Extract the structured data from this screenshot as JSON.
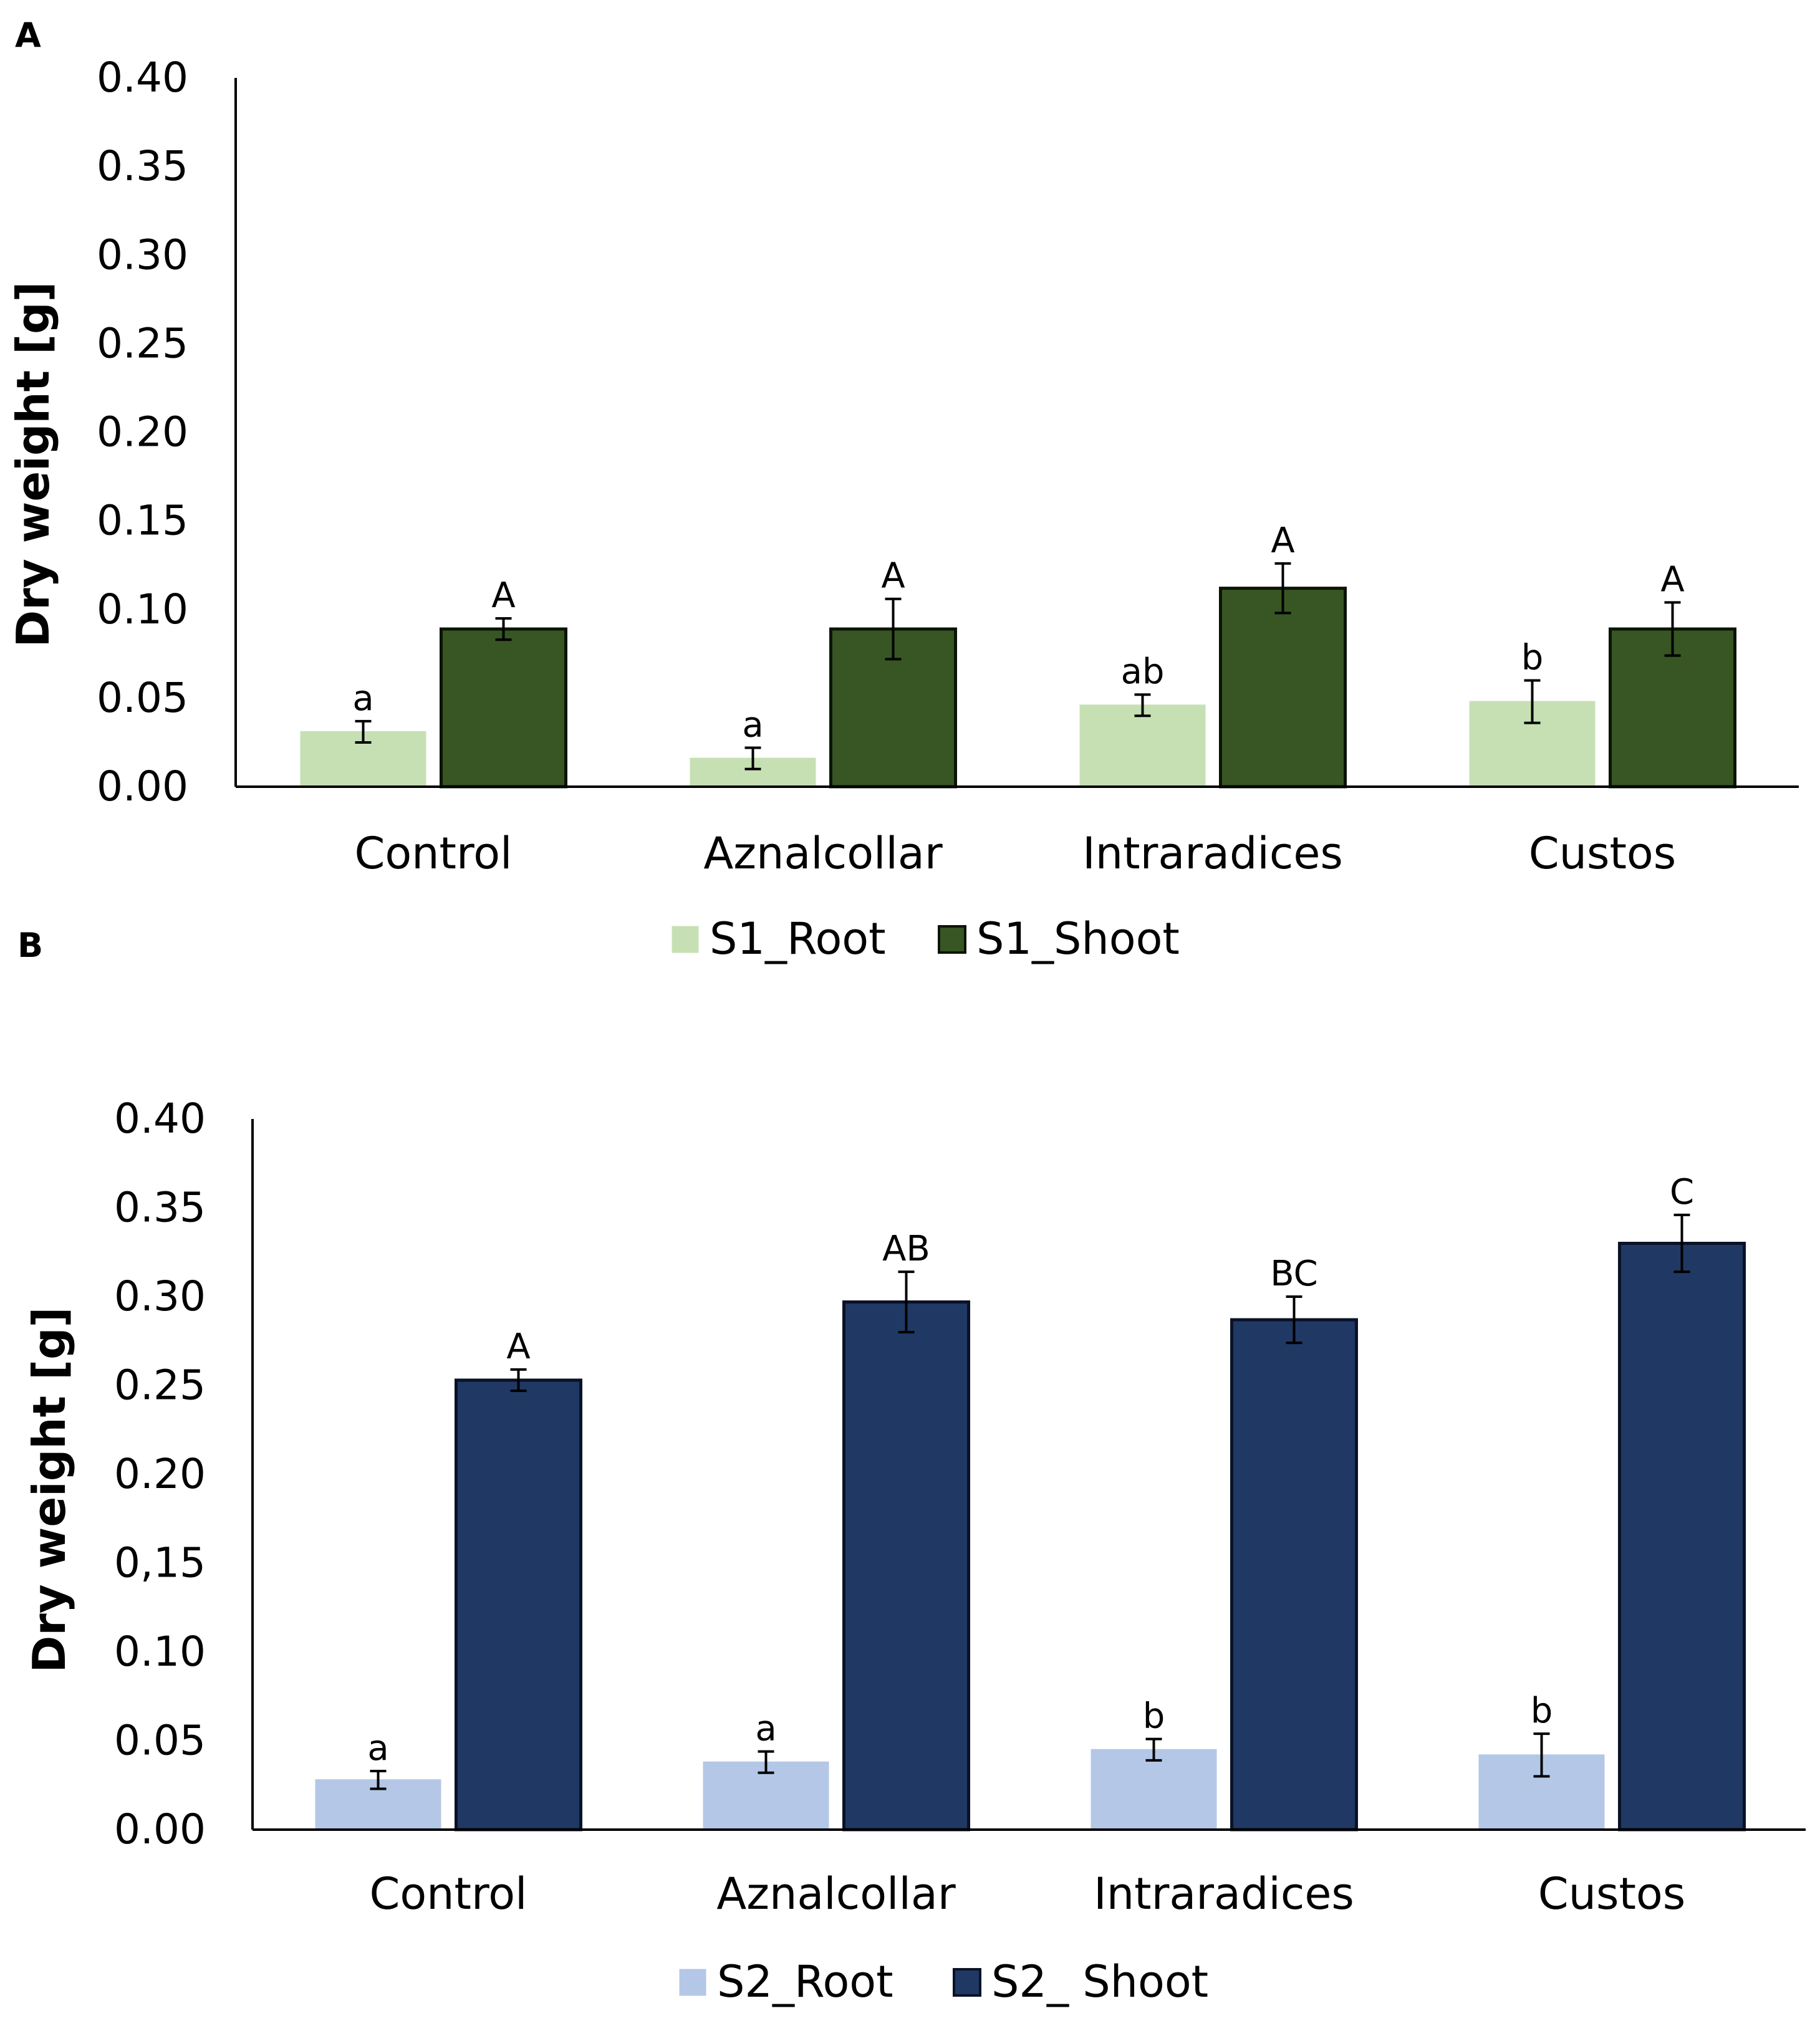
{
  "chart_data": [
    {
      "panel": "A",
      "type": "bar",
      "ylabel": "Dry weight [g]",
      "ylim": [
        0,
        0.4
      ],
      "yticks": [
        "0.00",
        "0.05",
        "0.10",
        "0.15",
        "0.20",
        "0.25",
        "0.30",
        "0.35",
        "0.40"
      ],
      "categories": [
        "Control",
        "Aznalcollar",
        "Intraradices",
        "Custos"
      ],
      "series": [
        {
          "name": "S1_Root",
          "color": "#c6e0b4",
          "border": "#c6e0b4",
          "values": [
            0.031,
            0.016,
            0.046,
            0.048
          ],
          "errors": [
            0.006,
            0.006,
            0.006,
            0.012
          ],
          "labels": [
            "a",
            "a",
            "ab",
            "b"
          ]
        },
        {
          "name": "S1_Shoot",
          "color": "#375623",
          "border": "#0b1405",
          "values": [
            0.089,
            0.089,
            0.112,
            0.089
          ],
          "errors": [
            0.006,
            0.017,
            0.014,
            0.015
          ],
          "labels": [
            "A",
            "A",
            "A",
            "A"
          ]
        }
      ]
    },
    {
      "panel": "B",
      "type": "bar",
      "ylabel": "Dry weight [g]",
      "ylim": [
        0,
        0.4
      ],
      "yticks": [
        "0.00",
        "0.05",
        "0.10",
        "0,15",
        "0.20",
        "0.25",
        "0.30",
        "0.35",
        "0.40"
      ],
      "categories": [
        "Control",
        "Aznalcollar",
        "Intraradices",
        "Custos"
      ],
      "series": [
        {
          "name": "S2_Root",
          "color": "#b4c7e7",
          "border": "#b4c7e7",
          "values": [
            0.028,
            0.038,
            0.045,
            0.042
          ],
          "errors": [
            0.005,
            0.006,
            0.006,
            0.012
          ],
          "labels": [
            "a",
            "a",
            "b",
            "b"
          ]
        },
        {
          "name": "S2_ Shoot",
          "color": "#203864",
          "border": "#0a1226",
          "values": [
            0.253,
            0.297,
            0.287,
            0.33
          ],
          "errors": [
            0.006,
            0.017,
            0.013,
            0.016
          ],
          "labels": [
            "A",
            "AB",
            "BC",
            "C"
          ]
        }
      ]
    }
  ]
}
